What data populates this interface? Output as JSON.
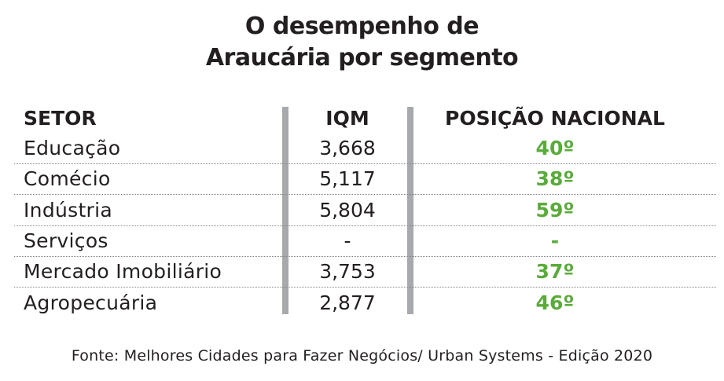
{
  "colors": {
    "text": "#231f20",
    "accent_green": "#5aab3b",
    "divider": "#a7a9ac"
  },
  "chart_data": {
    "type": "table",
    "title_lines": [
      "O desempenho de",
      "Araucária por segmento"
    ],
    "columns": [
      "SETOR",
      "IQM",
      "POSIÇÃO NACIONAL"
    ],
    "rows": [
      {
        "setor": "Educação",
        "iqm": "3,668",
        "posicao": "40º"
      },
      {
        "setor": "Comécio",
        "iqm": "5,117",
        "posicao": "38º"
      },
      {
        "setor": "Indústria",
        "iqm": "5,804",
        "posicao": "59º"
      },
      {
        "setor": "Serviços",
        "iqm": "-",
        "posicao": "-"
      },
      {
        "setor": "Mercado Imobiliário",
        "iqm": "3,753",
        "posicao": "37º"
      },
      {
        "setor": "Agropecuária",
        "iqm": "2,877",
        "posicao": "46º"
      }
    ],
    "source": "Fonte: Melhores Cidades para Fazer Negócios/ Urban Systems - Edição 2020"
  }
}
